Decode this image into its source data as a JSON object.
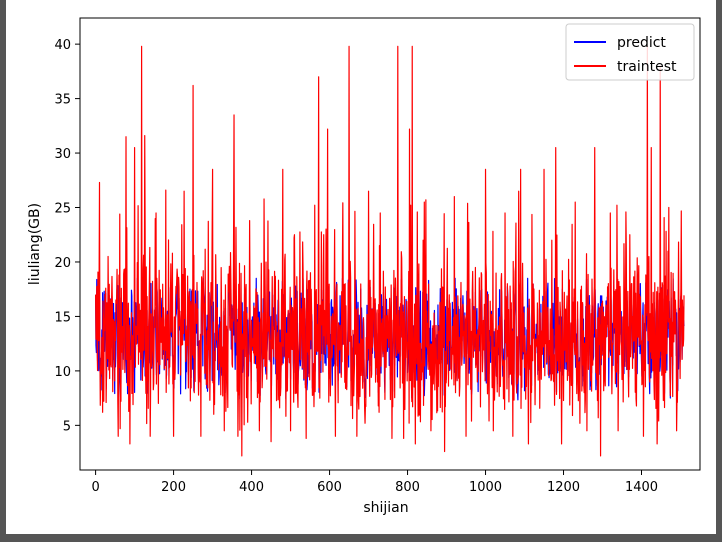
{
  "chart_data": {
    "type": "line",
    "title": "",
    "xlabel": "shijian",
    "ylabel": "liuliang(GB)",
    "xlim": [
      -40,
      1550
    ],
    "ylim": [
      0.9,
      42.4
    ],
    "xticks": [
      0,
      200,
      400,
      600,
      800,
      1000,
      1200,
      1400
    ],
    "yticks": [
      5,
      10,
      15,
      20,
      25,
      30,
      35,
      40
    ],
    "grid": false,
    "legend": "top-right",
    "n_points": 1510,
    "series": [
      {
        "name": "predict",
        "color": "#0000ff",
        "mean": 13.0,
        "range": [
          6.5,
          18.5
        ]
      },
      {
        "name": "traintest",
        "color": "#ff0000",
        "mean": 13.0,
        "range": [
          2.2,
          39.8
        ]
      }
    ],
    "traintest_peaks": [
      {
        "x": 2,
        "y": 14.5
      },
      {
        "x": 10,
        "y": 27.3
      },
      {
        "x": 18,
        "y": 6.2
      },
      {
        "x": 32,
        "y": 20.5
      },
      {
        "x": 52,
        "y": 16.5
      },
      {
        "x": 58,
        "y": 4.0
      },
      {
        "x": 62,
        "y": 24.4
      },
      {
        "x": 78,
        "y": 31.5
      },
      {
        "x": 88,
        "y": 3.3
      },
      {
        "x": 100,
        "y": 30.5
      },
      {
        "x": 118,
        "y": 39.8
      },
      {
        "x": 126,
        "y": 31.6
      },
      {
        "x": 140,
        "y": 4.0
      },
      {
        "x": 155,
        "y": 24.5
      },
      {
        "x": 180,
        "y": 26.6
      },
      {
        "x": 200,
        "y": 4.0
      },
      {
        "x": 227,
        "y": 26.5
      },
      {
        "x": 250,
        "y": 36.2
      },
      {
        "x": 270,
        "y": 4.0
      },
      {
        "x": 300,
        "y": 28.5
      },
      {
        "x": 330,
        "y": 4.5
      },
      {
        "x": 355,
        "y": 33.5
      },
      {
        "x": 365,
        "y": 4.0
      },
      {
        "x": 375,
        "y": 2.2
      },
      {
        "x": 395,
        "y": 23.8
      },
      {
        "x": 420,
        "y": 4.5
      },
      {
        "x": 450,
        "y": 3.5
      },
      {
        "x": 480,
        "y": 28.5
      },
      {
        "x": 500,
        "y": 4.5
      },
      {
        "x": 510,
        "y": 22.5
      },
      {
        "x": 540,
        "y": 3.8
      },
      {
        "x": 572,
        "y": 37.0
      },
      {
        "x": 585,
        "y": 22.5
      },
      {
        "x": 595,
        "y": 32.2
      },
      {
        "x": 615,
        "y": 4.0
      },
      {
        "x": 640,
        "y": 18.0
      },
      {
        "x": 650,
        "y": 39.8
      },
      {
        "x": 670,
        "y": 4.0
      },
      {
        "x": 700,
        "y": 26.5
      },
      {
        "x": 730,
        "y": 24.5
      },
      {
        "x": 760,
        "y": 3.8
      },
      {
        "x": 775,
        "y": 39.8
      },
      {
        "x": 790,
        "y": 3.8
      },
      {
        "x": 805,
        "y": 32.2
      },
      {
        "x": 812,
        "y": 39.8
      },
      {
        "x": 820,
        "y": 3.3
      },
      {
        "x": 840,
        "y": 22.0
      },
      {
        "x": 860,
        "y": 4.5
      },
      {
        "x": 895,
        "y": 2.6
      },
      {
        "x": 920,
        "y": 26.0
      },
      {
        "x": 950,
        "y": 4.0
      },
      {
        "x": 1000,
        "y": 28.5
      },
      {
        "x": 1020,
        "y": 4.5
      },
      {
        "x": 1050,
        "y": 24.5
      },
      {
        "x": 1070,
        "y": 4.0
      },
      {
        "x": 1085,
        "y": 26.5
      },
      {
        "x": 1090,
        "y": 28.5
      },
      {
        "x": 1110,
        "y": 3.3
      },
      {
        "x": 1150,
        "y": 28.5
      },
      {
        "x": 1170,
        "y": 22.0
      },
      {
        "x": 1180,
        "y": 30.5
      },
      {
        "x": 1195,
        "y": 3.3
      },
      {
        "x": 1230,
        "y": 25.5
      },
      {
        "x": 1260,
        "y": 4.5
      },
      {
        "x": 1280,
        "y": 30.5
      },
      {
        "x": 1295,
        "y": 2.2
      },
      {
        "x": 1320,
        "y": 24.5
      },
      {
        "x": 1340,
        "y": 4.5
      },
      {
        "x": 1370,
        "y": 22.5
      },
      {
        "x": 1405,
        "y": 4.0
      },
      {
        "x": 1415,
        "y": 39.8
      },
      {
        "x": 1425,
        "y": 30.5
      },
      {
        "x": 1440,
        "y": 3.3
      },
      {
        "x": 1448,
        "y": 38.0
      },
      {
        "x": 1470,
        "y": 25.0
      },
      {
        "x": 1490,
        "y": 4.5
      },
      {
        "x": 1505,
        "y": 16.5
      }
    ]
  }
}
